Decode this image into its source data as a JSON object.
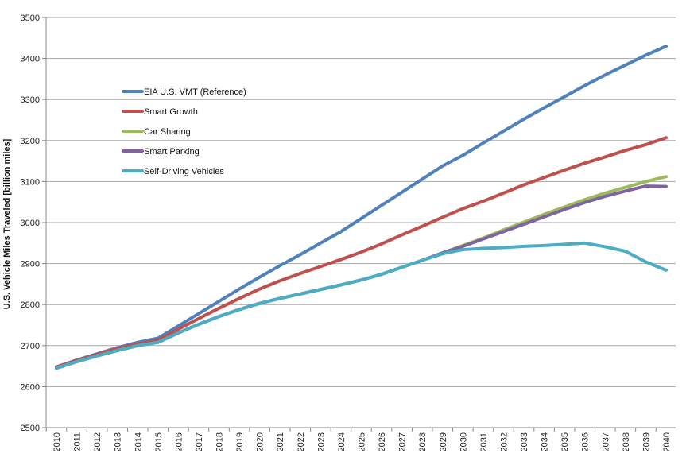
{
  "chart_data": {
    "type": "line",
    "title": "",
    "xlabel": "",
    "ylabel": "U.S. Vehicle Miles Traveled  [billion miles]",
    "ylim": [
      2500,
      3500
    ],
    "yticks": [
      2500,
      2600,
      2700,
      2800,
      2900,
      3000,
      3100,
      3200,
      3300,
      3400,
      3500
    ],
    "grid": "horizontal",
    "legend_position": "top-left",
    "x": [
      "2010",
      "2011",
      "2012",
      "2013",
      "2014",
      "2015",
      "2016",
      "2017",
      "2018",
      "2019",
      "2020",
      "2021",
      "2022",
      "2023",
      "2024",
      "2025",
      "2026",
      "2027",
      "2028",
      "2029",
      "2030",
      "2031",
      "2032",
      "2033",
      "2034",
      "2035",
      "2036",
      "2037",
      "2038",
      "2039",
      "2040"
    ],
    "series": [
      {
        "name": "EIA U.S. VMT (Reference)",
        "color": "#4f81bd",
        "values": [
          2648,
          2665,
          2680,
          2695,
          2708,
          2718,
          2748,
          2778,
          2808,
          2838,
          2867,
          2895,
          2922,
          2950,
          2978,
          3010,
          3042,
          3074,
          3106,
          3138,
          3164,
          3194,
          3223,
          3252,
          3280,
          3307,
          3334,
          3360,
          3384,
          3408,
          3430
        ]
      },
      {
        "name": "Smart Growth",
        "color": "#c0504d",
        "values": [
          2648,
          2664,
          2679,
          2693,
          2704,
          2713,
          2740,
          2766,
          2791,
          2815,
          2838,
          2858,
          2876,
          2893,
          2910,
          2928,
          2948,
          2970,
          2991,
          3013,
          3034,
          3052,
          3072,
          3092,
          3110,
          3128,
          3145,
          3160,
          3176,
          3190,
          3207
        ]
      },
      {
        "name": "Car Sharing",
        "color": "#9bbb59",
        "values": [
          2645,
          2661,
          2675,
          2688,
          2700,
          2708,
          2731,
          2752,
          2771,
          2788,
          2803,
          2815,
          2826,
          2837,
          2848,
          2860,
          2874,
          2891,
          2908,
          2926,
          2944,
          2962,
          2982,
          3001,
          3020,
          3038,
          3056,
          3072,
          3086,
          3100,
          3112
        ]
      },
      {
        "name": "Smart Parking",
        "color": "#8064a2",
        "values": [
          2645,
          2661,
          2675,
          2688,
          2700,
          2708,
          2731,
          2752,
          2771,
          2788,
          2803,
          2815,
          2826,
          2837,
          2848,
          2860,
          2874,
          2891,
          2908,
          2926,
          2942,
          2960,
          2978,
          2996,
          3014,
          3032,
          3049,
          3064,
          3077,
          3089,
          3088
        ]
      },
      {
        "name": "Self-Driving Vehicles",
        "color": "#4bacc6",
        "values": [
          2645,
          2661,
          2675,
          2688,
          2700,
          2708,
          2731,
          2752,
          2771,
          2788,
          2803,
          2815,
          2826,
          2837,
          2848,
          2860,
          2874,
          2891,
          2908,
          2924,
          2934,
          2937,
          2939,
          2942,
          2944,
          2947,
          2950,
          2941,
          2930,
          2904,
          2884
        ]
      }
    ]
  }
}
